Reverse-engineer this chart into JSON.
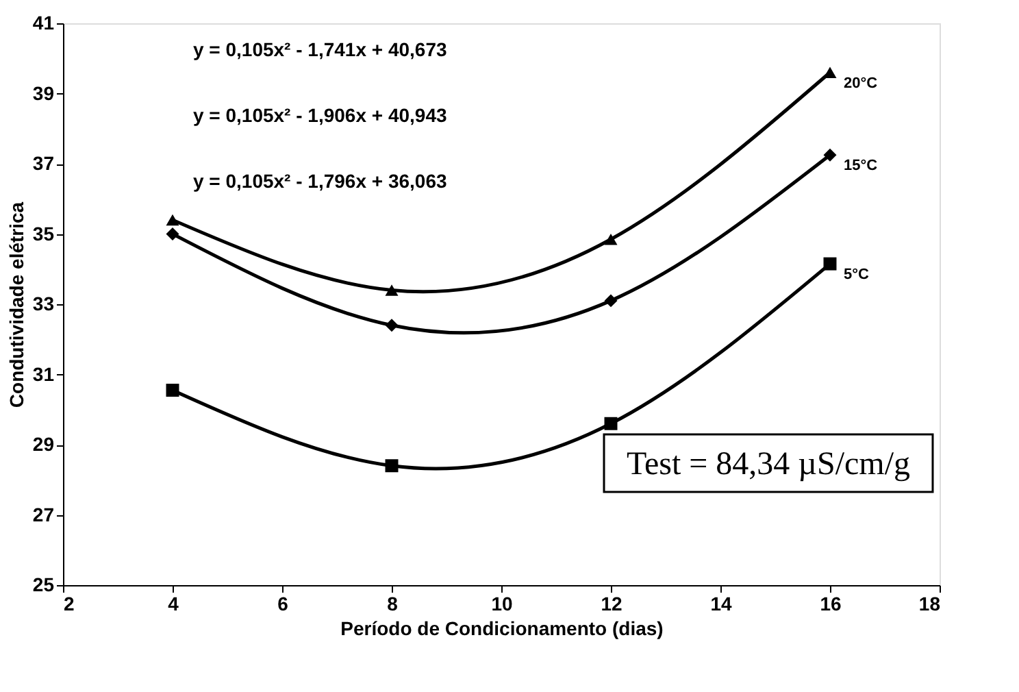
{
  "chart_data": {
    "type": "line",
    "xlabel": "Período de Condicionamento (dias)",
    "ylabel": "Condutividade elétrica",
    "x": [
      4,
      8,
      12,
      16
    ],
    "series": [
      {
        "name": "20°C",
        "color": "#000000",
        "marker": "triangle",
        "line_style": "solid",
        "values": [
          35.4,
          33.4,
          34.85,
          39.6
        ]
      },
      {
        "name": "15°C",
        "color": "#000000",
        "marker": "diamond",
        "line_style": "solid",
        "values": [
          35.0,
          32.4,
          33.1,
          37.25
        ]
      },
      {
        "name": "5°C",
        "color": "#000000",
        "marker": "square",
        "line_style": "solid",
        "values": [
          30.55,
          28.4,
          29.6,
          34.15
        ]
      }
    ],
    "xlim": [
      2,
      18
    ],
    "xticks": [
      2,
      4,
      6,
      8,
      10,
      12,
      14,
      16,
      18
    ],
    "ylim": [
      25,
      41
    ],
    "yticks": [
      25,
      27,
      29,
      31,
      33,
      35,
      37,
      39,
      41
    ],
    "grid": false,
    "legend": false,
    "annotations": [
      "y = 0,105x² - 1,741x + 40,673",
      "y = 0,105x² - 1,906x + 40,943",
      "y = 0,105x² - 1,796x + 36,063",
      "Test = 84,34 µS/cm/g"
    ]
  }
}
